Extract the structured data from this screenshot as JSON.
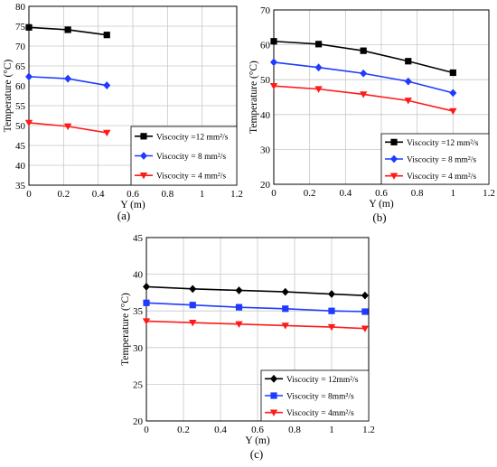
{
  "colors": {
    "black": "#000000",
    "blue": "#1f3bff",
    "red": "#ff1a1a"
  },
  "chart_data": [
    {
      "id": "a",
      "caption": "(a)",
      "type": "line",
      "xlabel": "Y (m)",
      "ylabel": "Temperature (°C)",
      "xlim": [
        0,
        1.2
      ],
      "ylim": [
        35,
        80
      ],
      "xticks": [
        "0",
        "0.2",
        "0.4",
        "0.6",
        "0.8",
        "1",
        "1.2"
      ],
      "yticks": [
        "35",
        "40",
        "45",
        "50",
        "55",
        "60",
        "65",
        "70",
        "75",
        "80"
      ],
      "grid": true,
      "legend_position": "bottom-right",
      "series": [
        {
          "name": "Viscocity =12 mm²/s",
          "color": "#000000",
          "marker": "square",
          "x": [
            0,
            0.225,
            0.45
          ],
          "y": [
            74.7,
            74.1,
            72.8
          ]
        },
        {
          "name": "Viscocity = 8 mm²/s",
          "color": "#1f3bff",
          "marker": "diamond",
          "x": [
            0,
            0.225,
            0.45
          ],
          "y": [
            62.3,
            61.8,
            60.1
          ]
        },
        {
          "name": "Viscocity = 4 mm²/s",
          "color": "#ff1a1a",
          "marker": "triangle",
          "x": [
            0,
            0.225,
            0.45
          ],
          "y": [
            50.7,
            49.8,
            48.2
          ]
        }
      ]
    },
    {
      "id": "b",
      "caption": "(b)",
      "type": "line",
      "xlabel": "Y (m)",
      "ylabel": "Temperature (°C)",
      "xlim": [
        0,
        1.2
      ],
      "ylim": [
        20,
        70
      ],
      "xticks": [
        "0",
        "0.2",
        "0.4",
        "0.6",
        "0.8",
        "1",
        "1.2"
      ],
      "yticks": [
        "20",
        "30",
        "40",
        "50",
        "60",
        "70"
      ],
      "grid": true,
      "legend_position": "bottom-right",
      "series": [
        {
          "name": "Viscocity =12 mm²/s",
          "color": "#000000",
          "marker": "square",
          "x": [
            0,
            0.25,
            0.5,
            0.75,
            1.0
          ],
          "y": [
            61.0,
            60.2,
            58.3,
            55.3,
            52.0
          ]
        },
        {
          "name": "Viscocity = 8 mm²/s",
          "color": "#1f3bff",
          "marker": "diamond",
          "x": [
            0,
            0.25,
            0.5,
            0.75,
            1.0
          ],
          "y": [
            55.0,
            53.5,
            51.8,
            49.5,
            46.2
          ]
        },
        {
          "name": "Viscocity = 4 mm²/s",
          "color": "#ff1a1a",
          "marker": "triangle",
          "x": [
            0,
            0.25,
            0.5,
            0.75,
            1.0
          ],
          "y": [
            48.2,
            47.3,
            45.8,
            44.0,
            41.0
          ]
        }
      ]
    },
    {
      "id": "c",
      "caption": "(c)",
      "type": "line",
      "xlabel": "Y (m)",
      "ylabel": "Temperature (°C)",
      "xlim": [
        0,
        1.2
      ],
      "ylim": [
        20,
        45
      ],
      "xticks": [
        "0",
        "0.2",
        "0.4",
        "0.6",
        "0.8",
        "1",
        "1.2"
      ],
      "yticks": [
        "20",
        "25",
        "30",
        "35",
        "40",
        "45"
      ],
      "grid": true,
      "legend_position": "bottom-right",
      "series": [
        {
          "name": "Viscocity = 12mm²/s",
          "color": "#000000",
          "marker": "diamond",
          "x": [
            0,
            0.25,
            0.5,
            0.75,
            1.0,
            1.18
          ],
          "y": [
            38.3,
            38.0,
            37.8,
            37.6,
            37.3,
            37.1
          ]
        },
        {
          "name": "Viscocity = 8mm²/s",
          "color": "#1f3bff",
          "marker": "square",
          "x": [
            0,
            0.25,
            0.5,
            0.75,
            1.0,
            1.18
          ],
          "y": [
            36.1,
            35.8,
            35.5,
            35.3,
            35.0,
            34.9
          ]
        },
        {
          "name": "Viscocity = 4mm²/s",
          "color": "#ff1a1a",
          "marker": "triangle",
          "x": [
            0,
            0.25,
            0.5,
            0.75,
            1.0,
            1.18
          ],
          "y": [
            33.6,
            33.4,
            33.2,
            33.0,
            32.8,
            32.6
          ]
        }
      ]
    }
  ]
}
